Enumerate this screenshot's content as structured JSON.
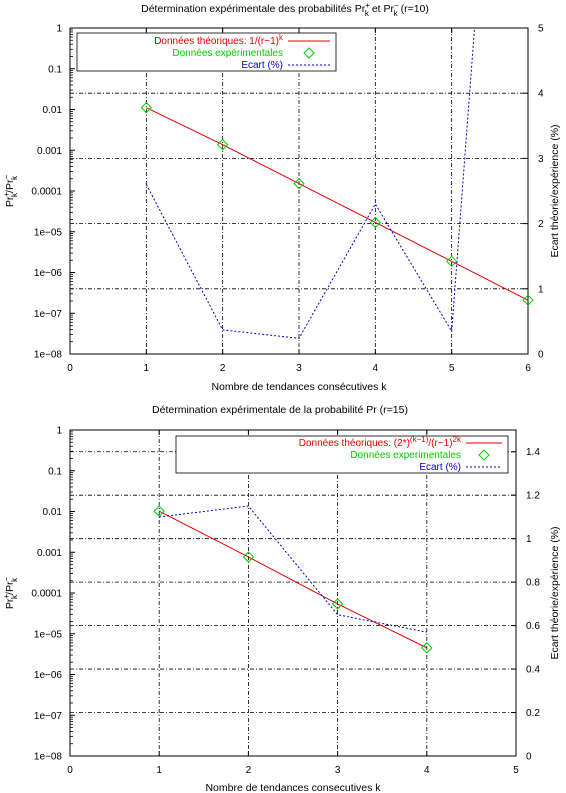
{
  "chart_data": [
    {
      "type": "line",
      "title_parts": {
        "a": "Détermination expérimentale des probabilités Pr",
        "sup1": "+",
        "sub1": "k",
        "b": " et Pr",
        "sup2": "−",
        "sub2": "k",
        "c": " (r=10)"
      },
      "xlabel": "Nombre de tendances consécutives k",
      "ylabel_parts": {
        "a": "Pr",
        "sup1": "+",
        "sub1": "k",
        "b": "/Pr",
        "sup2": "−",
        "sub2": "k"
      },
      "y2label": "Ecart théorie/expérience (%)",
      "xlim": [
        0,
        6
      ],
      "x_ticks": [
        "0",
        "1",
        "2",
        "3",
        "4",
        "5",
        "6"
      ],
      "ylim_log": [
        -8,
        0
      ],
      "y_ticks": [
        "1",
        "0.1",
        "0.01",
        "0.001",
        "0.0001",
        "1e−05",
        "1e−06",
        "1e−07",
        "1e−08"
      ],
      "y2lim": [
        0,
        5
      ],
      "y2_ticks": [
        "0",
        "1",
        "2",
        "3",
        "4",
        "5"
      ],
      "legend": {
        "theory": {
          "a": "Données théoriques: 1/(r−1)",
          "sup": "k"
        },
        "exp": "Données expérimentales",
        "ecart": "Ecart (%)"
      },
      "series": [
        {
          "name": "Données théoriques",
          "axis": "y",
          "x": [
            1,
            2,
            3,
            4,
            5,
            6
          ],
          "values": [
            0.0111,
            0.00137,
            0.000152,
            1.69e-05,
            1.88e-06,
            2.09e-07
          ]
        },
        {
          "name": "Données expérimentales",
          "axis": "y",
          "x": [
            1,
            2,
            3,
            4,
            5,
            6
          ],
          "values": [
            0.0111,
            0.00137,
            0.000152,
            1.69e-05,
            1.88e-06,
            2.09e-07
          ]
        },
        {
          "name": "Ecart (%)",
          "axis": "y2",
          "x": [
            1,
            2,
            3,
            4,
            5,
            5.3
          ],
          "values": [
            2.6,
            0.37,
            0.24,
            2.3,
            0.35,
            5.0
          ]
        }
      ],
      "colors": {
        "theory": "#e00000",
        "exp": "#00cc00",
        "ecart": "#0000cc",
        "grid": "#000000"
      }
    },
    {
      "type": "line",
      "title": "Détermination expérimentale de la probabilité Pr (r=15)",
      "xlabel": "Nombre de tendances consecutives k",
      "ylabel_parts": {
        "a": "Pr",
        "sup1": "+",
        "sub1": "k",
        "b": "/Pr",
        "sup2": "−",
        "sub2": "k"
      },
      "y2label": "Ecart théorie/expérience (%)",
      "xlim": [
        0,
        5
      ],
      "x_ticks": [
        "0",
        "1",
        "2",
        "3",
        "4",
        "5"
      ],
      "ylim_log": [
        -8,
        0
      ],
      "y_ticks": [
        "1",
        "0.1",
        "0.01",
        "0.001",
        "0.0001",
        "1e−05",
        "1e−06",
        "1e−07",
        "1e−08"
      ],
      "y2lim": [
        0,
        1.5
      ],
      "y2_ticks": [
        "0",
        "0.2",
        "0.4",
        "0.6",
        "0.8",
        "1",
        "1.2",
        "1.4"
      ],
      "legend": {
        "theory": {
          "a": "Données théoriques: (2*)",
          "sup1": "(k−1)",
          "b": "/(r−1)",
          "sup2": "2k"
        },
        "exp": "Données experimentales",
        "ecart": "Ecart (%)"
      },
      "series": [
        {
          "name": "Données théoriques",
          "axis": "y",
          "x": [
            1,
            2,
            3,
            4
          ],
          "values": [
            0.0102,
            0.000765,
            5.4e-05,
            4.5e-06
          ]
        },
        {
          "name": "Données experimentales",
          "axis": "y",
          "x": [
            1,
            2,
            3,
            4
          ],
          "values": [
            0.0102,
            0.000765,
            5.4e-05,
            4.5e-06
          ]
        },
        {
          "name": "Ecart (%)",
          "axis": "y2",
          "x": [
            1,
            2,
            3,
            4
          ],
          "values": [
            1.1,
            1.15,
            0.65,
            0.57
          ]
        }
      ],
      "colors": {
        "theory": "#e00000",
        "exp": "#00cc00",
        "ecart": "#0000cc",
        "grid": "#000000"
      }
    }
  ]
}
